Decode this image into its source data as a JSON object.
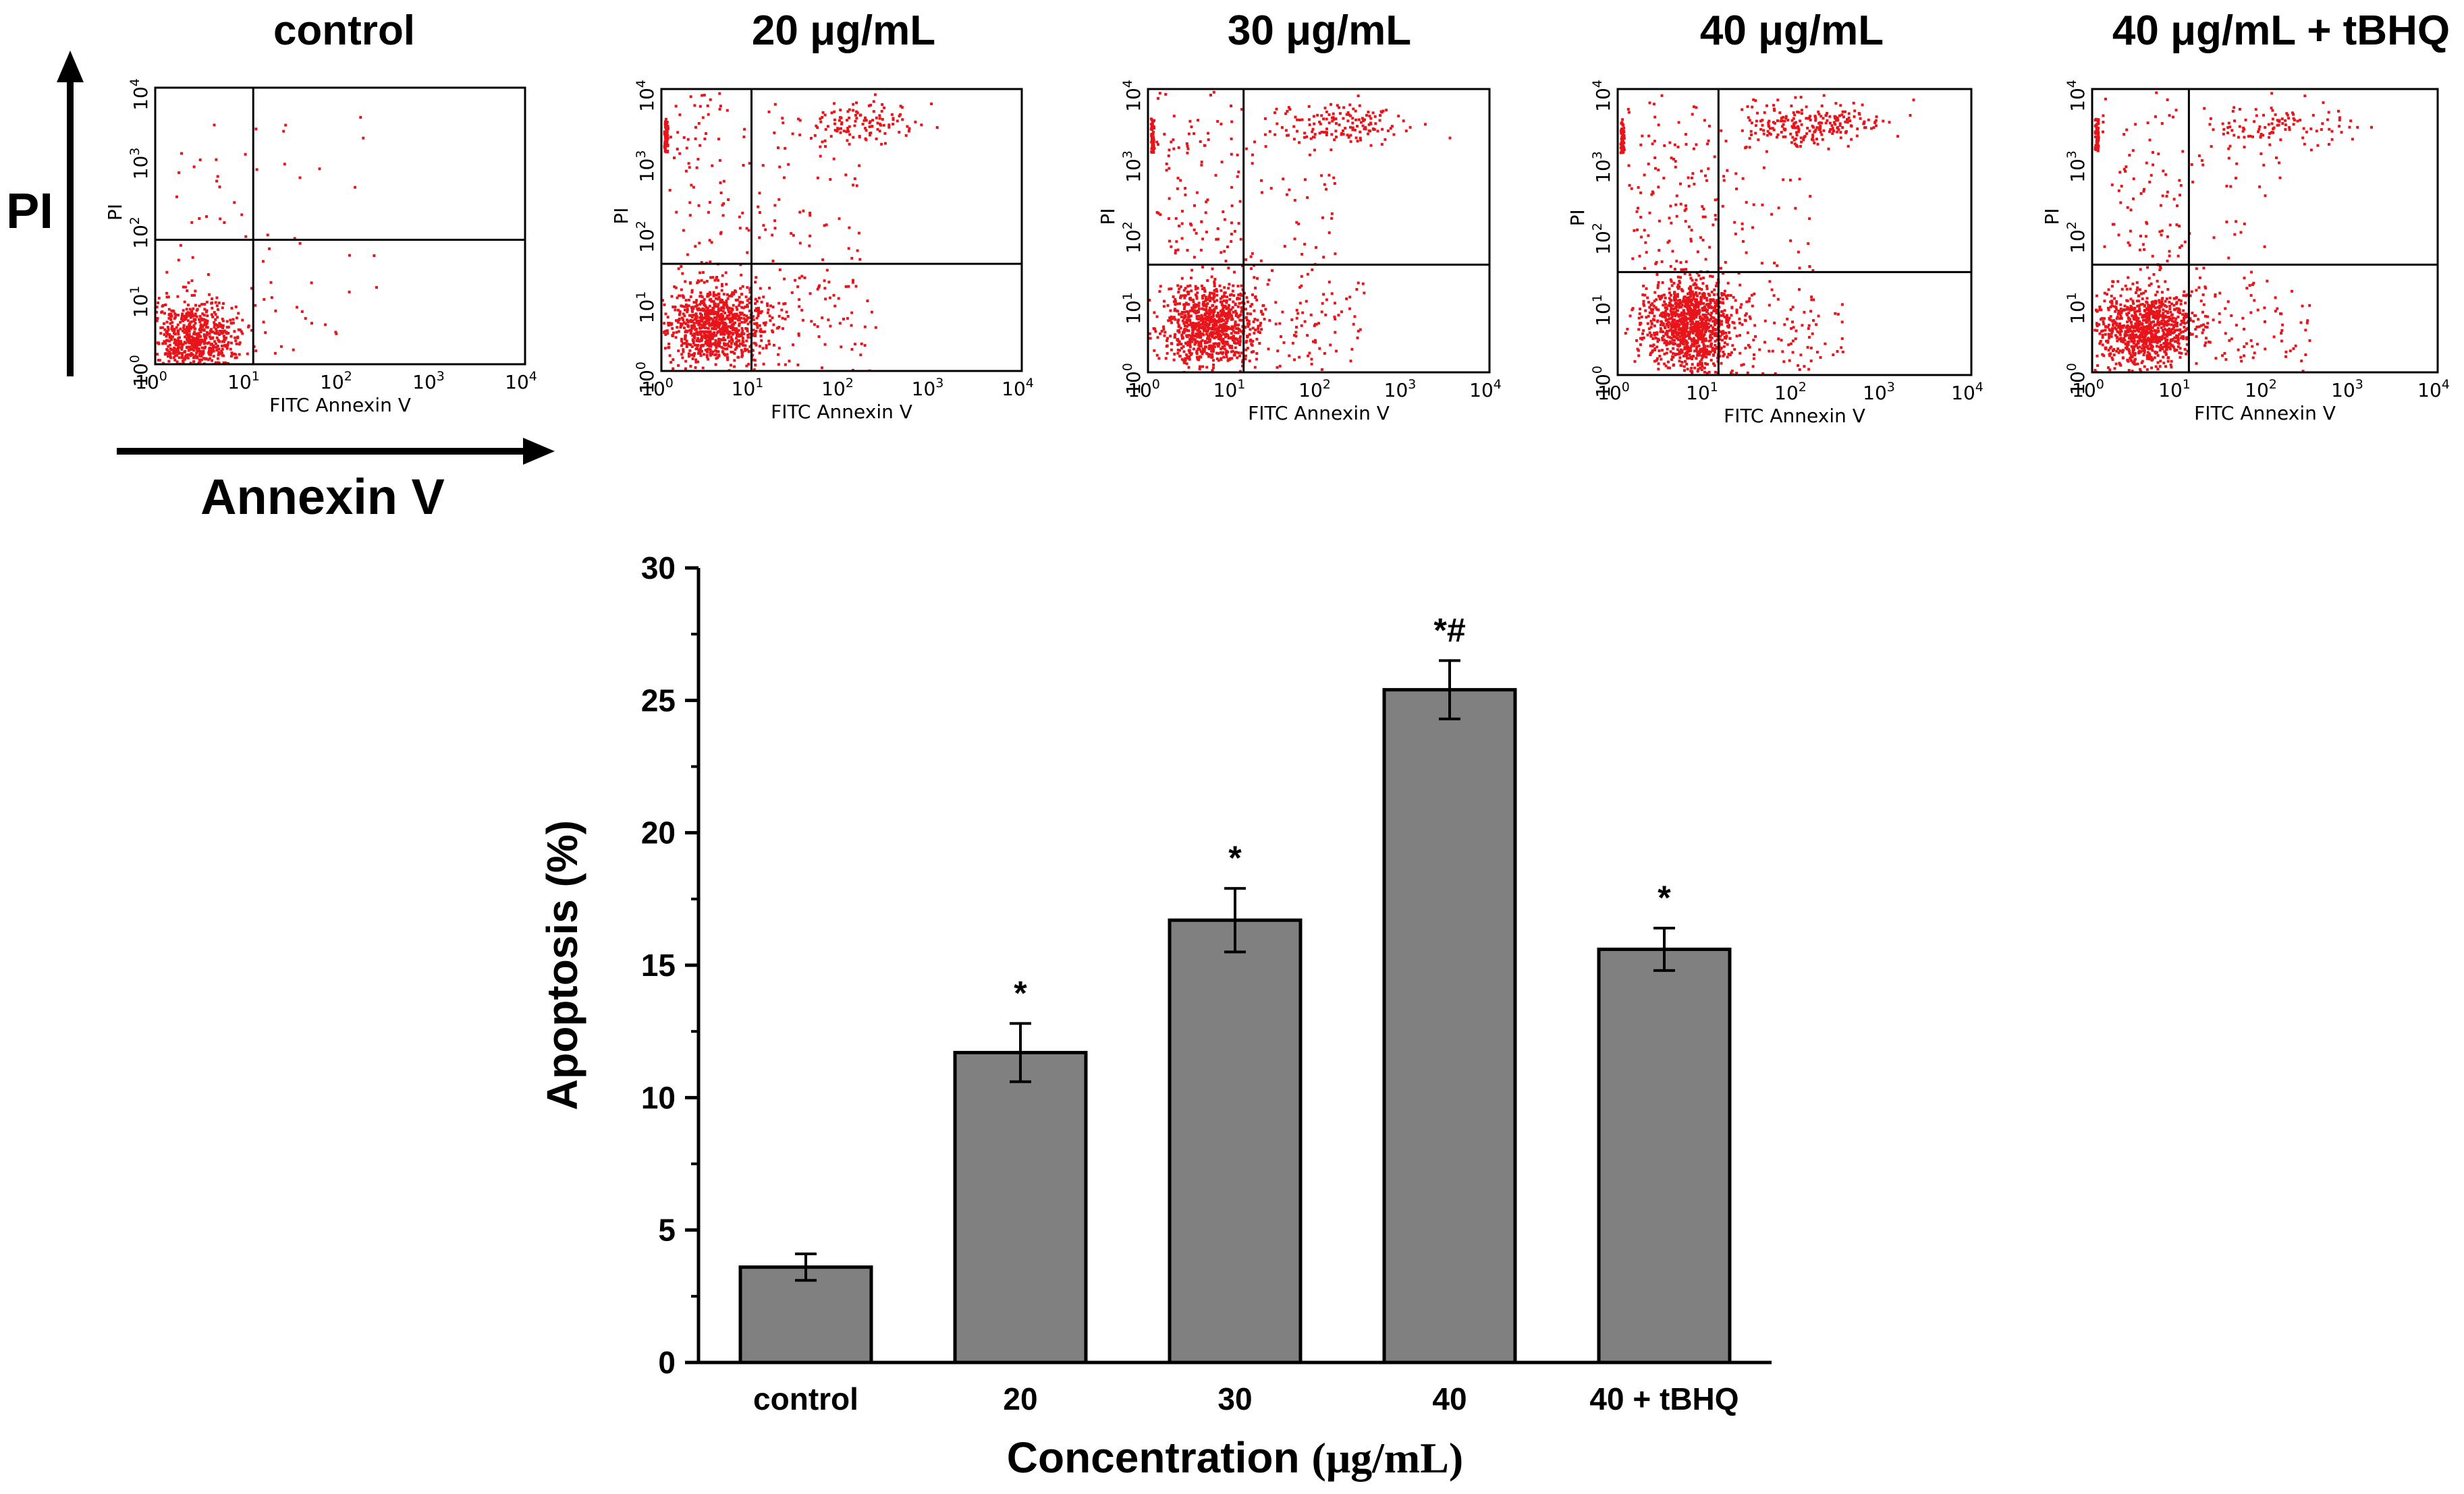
{
  "flow_panels": {
    "titles": [
      "control",
      "20 μg/mL",
      "30 μg/mL",
      "40 μg/mL",
      "40 μg/mL + tBHQ"
    ],
    "x_axis_label": "FITC Annexin V",
    "y_axis_label": "PI",
    "tick_base": "10",
    "tick_exponents": [
      "0",
      "1",
      "2",
      "3",
      "4"
    ],
    "dot_color": "#e8141b",
    "big_y_label": "PI",
    "big_x_label": "Annexin V"
  },
  "chart_data": {
    "type": "bar",
    "categories": [
      "control",
      "20",
      "30",
      "40",
      "40 + tBHQ"
    ],
    "values": [
      3.6,
      11.7,
      16.7,
      25.4,
      15.6
    ],
    "errors": [
      0.5,
      1.1,
      1.2,
      1.1,
      0.8
    ],
    "significance": [
      "",
      "*",
      "*",
      "*#",
      "*"
    ],
    "ylabel": "Apoptosis (%)",
    "xlabel": "Concentration",
    "xlabel_unit": "(μg/mL)",
    "ylim": [
      0,
      30
    ],
    "yticks": [
      "0",
      "5",
      "10",
      "15",
      "20",
      "25",
      "30"
    ],
    "bar_color": "#808080"
  }
}
